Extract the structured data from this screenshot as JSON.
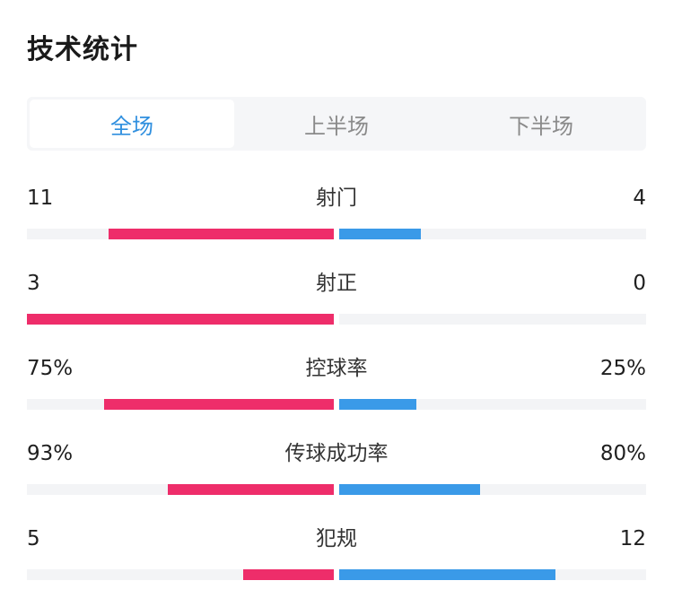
{
  "page": {
    "title": "技术统计"
  },
  "tabs": [
    {
      "label": "全场",
      "active": true
    },
    {
      "label": "上半场",
      "active": false
    },
    {
      "label": "下半场",
      "active": false
    }
  ],
  "colors": {
    "home_bar": "#ee2d6a",
    "away_bar": "#3a9ae8",
    "track": "#f3f4f6",
    "active_tab": "#2f8fdf"
  },
  "stats": [
    {
      "label": "射门",
      "left": "11",
      "right": "4",
      "left_ratio": 0.733,
      "right_ratio": 0.267
    },
    {
      "label": "射正",
      "left": "3",
      "right": "0",
      "left_ratio": 1.0,
      "right_ratio": 0.0
    },
    {
      "label": "控球率",
      "left": "75%",
      "right": "25%",
      "left_ratio": 0.75,
      "right_ratio": 0.25
    },
    {
      "label": "传球成功率",
      "left": "93%",
      "right": "80%",
      "left_ratio": 0.54,
      "right_ratio": 0.46
    },
    {
      "label": "犯规",
      "left": "5",
      "right": "12",
      "left_ratio": 0.294,
      "right_ratio": 0.706
    }
  ]
}
